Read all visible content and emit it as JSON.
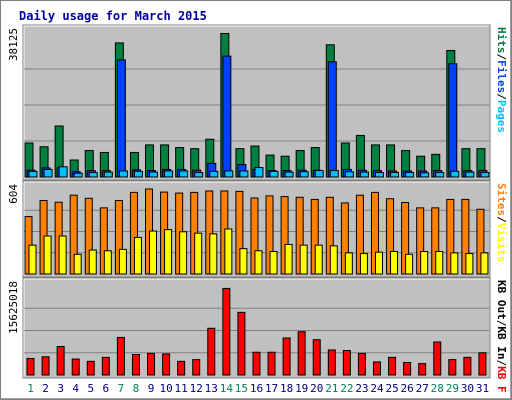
{
  "chart_data": {
    "type": "bar",
    "title": "Daily usage for March 2015",
    "categories": [
      "1",
      "2",
      "3",
      "4",
      "5",
      "6",
      "7",
      "8",
      "9",
      "10",
      "11",
      "12",
      "13",
      "14",
      "15",
      "16",
      "17",
      "18",
      "19",
      "20",
      "21",
      "22",
      "23",
      "24",
      "25",
      "26",
      "27",
      "28",
      "29",
      "30",
      "31"
    ],
    "weekend_days": [
      "1",
      "7",
      "8",
      "14",
      "15",
      "21",
      "22",
      "28",
      "29"
    ],
    "panels": [
      {
        "id": "hits-files-pages",
        "max_label": "38125",
        "ylim": [
          0,
          38125
        ],
        "legend": [
          "Pages",
          "/",
          "Files",
          "/",
          "Hits"
        ],
        "series": [
          {
            "name": "Hits",
            "color": "#008040",
            "values": [
              9000,
              8000,
              13500,
              4500,
              7000,
              6500,
              35500,
              6500,
              8500,
              8500,
              7800,
              7500,
              10000,
              38000,
              7500,
              8200,
              5800,
              5500,
              7000,
              7800,
              35000,
              9000,
              11000,
              8500,
              8500,
              7000,
              5500,
              6000,
              33500,
              7500,
              7500
            ]
          },
          {
            "name": "Files",
            "color": "#0040ff",
            "values": [
              1800,
              2400,
              2400,
              1400,
              1700,
              1700,
              31000,
              1900,
              1700,
              2000,
              2000,
              1800,
              3600,
              32000,
              3300,
              2000,
              1700,
              1700,
              1800,
              1800,
              30500,
              2000,
              1800,
              1700,
              1600,
              1600,
              1600,
              1700,
              30000,
              1700,
              1700
            ]
          },
          {
            "name": "Pages",
            "color": "#00c0ff",
            "values": [
              1500,
              2000,
              2700,
              1000,
              1200,
              1300,
              1600,
              1500,
              1300,
              1600,
              1600,
              1200,
              1500,
              1600,
              1600,
              2500,
              1500,
              1300,
              1400,
              1700,
              1700,
              1400,
              1300,
              1200,
              1200,
              1200,
              1100,
              1200,
              1500,
              1300,
              1200
            ]
          }
        ]
      },
      {
        "id": "visits-sites",
        "max_label": "604",
        "ylim": [
          0,
          604
        ],
        "legend": [
          "Visits",
          "/",
          "Sites"
        ],
        "series": [
          {
            "name": "Sites",
            "color": "#ff8000",
            "values": [
              408,
              522,
              510,
              560,
              538,
              470,
              522,
              580,
              604,
              582,
              575,
              580,
              590,
              590,
              587,
              540,
              555,
              550,
              545,
              530,
              545,
              505,
              560,
              580,
              535,
              508,
              470,
              470,
              530,
              530,
              460
            ]
          },
          {
            "name": "Visits",
            "color": "#ffff00",
            "values": [
              205,
              270,
              270,
              140,
              170,
              165,
              175,
              260,
              305,
              315,
              300,
              290,
              285,
              320,
              180,
              165,
              160,
              210,
              205,
              205,
              200,
              150,
              145,
              155,
              160,
              140,
              160,
              160,
              150,
              145,
              150
            ]
          }
        ]
      },
      {
        "id": "kb-f-in-out",
        "max_label": "15625018",
        "ylim": [
          0,
          15625018
        ],
        "legend": [
          "KB F",
          "/",
          "KB In",
          "/",
          "KB Out"
        ],
        "series": [
          {
            "name": "KB F",
            "color": "#ff0000",
            "values": [
              2900000,
              3200000,
              5000000,
              2800000,
              2400000,
              3100000,
              6600000,
              3600000,
              3800000,
              3700000,
              2400000,
              2700000,
              8200000,
              15200000,
              11000000,
              4000000,
              4000000,
              6500000,
              7600000,
              6200000,
              4400000,
              4300000,
              3800000,
              2300000,
              3100000,
              2200000,
              2000000,
              5800000,
              2700000,
              3100000,
              3900000
            ]
          }
        ]
      }
    ]
  },
  "colors": {
    "title": "#0000a0",
    "background": "#ffffff",
    "panel_bg": "#c0c0c0",
    "frame_dark": "#808080",
    "grid": "#808080",
    "weekday_label": "#000080",
    "weekend_label": "#00805c",
    "legend_separator": "#000000"
  }
}
